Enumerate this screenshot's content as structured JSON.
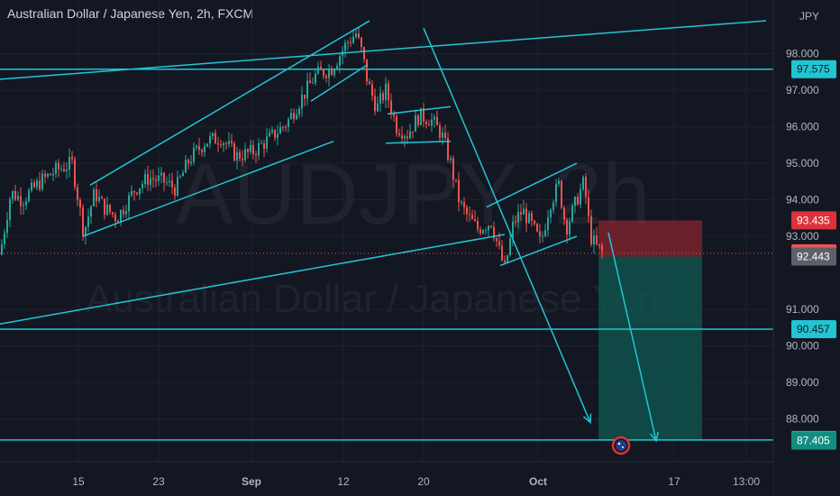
{
  "header": {
    "title": "Australian Dollar / Japanese Yen, 2h, FXCM"
  },
  "watermark": {
    "symbol": "AUDJPY, 2h",
    "name": "Australian Dollar / Japanese Yen"
  },
  "colors": {
    "background": "#131722",
    "up": "#26a69a",
    "down": "#ef5350",
    "drawing": "#22c5d4",
    "stop_zone": "#b22833",
    "target_zone": "#0f5a50",
    "grid": "#1e222d"
  },
  "chart_data": {
    "type": "candlestick",
    "symbol": "AUDJPY",
    "timeframe": "2h",
    "source": "FXCM",
    "currency_label": "JPY",
    "ylim": [
      86.6,
      100.2
    ],
    "y_ticks": [
      "98.000",
      "97.000",
      "96.000",
      "95.000",
      "94.000",
      "93.000",
      "91.000",
      "90.000",
      "89.000",
      "88.000"
    ],
    "x_ticks": [
      "15",
      "23",
      "Sep",
      "12",
      "20",
      "Oct",
      "17",
      "13:00"
    ],
    "price_labels": [
      {
        "value": "97.575",
        "style": "drawing"
      },
      {
        "value": "93.435",
        "style": "stop"
      },
      {
        "value": "92.534",
        "style": "last"
      },
      {
        "value": "92.443",
        "style": "entry"
      },
      {
        "value": "90.457",
        "style": "drawing"
      },
      {
        "value": "87.422",
        "style": "drawing"
      },
      {
        "value": "87.405",
        "style": "target"
      }
    ],
    "horizontal_levels": [
      97.575,
      90.457,
      87.422
    ],
    "last_price": 92.534,
    "position": {
      "side": "short",
      "entry": 92.443,
      "stop": 93.435,
      "target": 87.405
    },
    "swing_points": [
      [
        0,
        92.5
      ],
      [
        12,
        94.2
      ],
      [
        25,
        94.0
      ],
      [
        45,
        94.5
      ],
      [
        62,
        94.8
      ],
      [
        80,
        95.0
      ],
      [
        93,
        93.1
      ],
      [
        105,
        94.2
      ],
      [
        115,
        93.8
      ],
      [
        130,
        93.5
      ],
      [
        150,
        94.3
      ],
      [
        165,
        94.6
      ],
      [
        182,
        94.5
      ],
      [
        195,
        94.3
      ],
      [
        210,
        95.1
      ],
      [
        228,
        95.6
      ],
      [
        245,
        95.7
      ],
      [
        262,
        95.2
      ],
      [
        280,
        95.3
      ],
      [
        300,
        95.7
      ],
      [
        318,
        96.1
      ],
      [
        335,
        96.8
      ],
      [
        350,
        97.4
      ],
      [
        368,
        97.6
      ],
      [
        385,
        98.3
      ],
      [
        395,
        98.55
      ],
      [
        402,
        98.0
      ],
      [
        408,
        97.2
      ],
      [
        418,
        96.5
      ],
      [
        428,
        97.0
      ],
      [
        440,
        96.0
      ],
      [
        452,
        95.8
      ],
      [
        465,
        96.3
      ],
      [
        478,
        96.2
      ],
      [
        490,
        95.8
      ],
      [
        500,
        95.0
      ],
      [
        510,
        93.9
      ],
      [
        520,
        93.5
      ],
      [
        530,
        93.2
      ],
      [
        545,
        93.4
      ],
      [
        555,
        92.5
      ],
      [
        560,
        92.1
      ],
      [
        570,
        93.4
      ],
      [
        580,
        93.7
      ],
      [
        590,
        93.3
      ],
      [
        600,
        92.8
      ],
      [
        610,
        93.9
      ],
      [
        620,
        94.4
      ],
      [
        628,
        93.2
      ],
      [
        640,
        94.0
      ],
      [
        648,
        94.5
      ],
      [
        655,
        93.0
      ],
      [
        662,
        92.7
      ],
      [
        670,
        92.53
      ]
    ],
    "trend_lines": [
      [
        [
          0,
          97.3
        ],
        [
          850,
          98.9
        ]
      ],
      [
        [
          0,
          90.6
        ],
        [
          560,
          93.05
        ]
      ],
      [
        [
          92,
          93.0
        ],
        [
          370,
          95.6
        ]
      ],
      [
        [
          100,
          94.4
        ],
        [
          410,
          98.9
        ]
      ],
      [
        [
          345,
          96.7
        ],
        [
          408,
          97.7
        ]
      ],
      [
        [
          430,
          96.35
        ],
        [
          500,
          96.55
        ]
      ],
      [
        [
          428,
          95.55
        ],
        [
          500,
          95.6
        ]
      ],
      [
        [
          540,
          93.8
        ],
        [
          640,
          95.0
        ]
      ],
      [
        [
          555,
          92.2
        ],
        [
          640,
          93.0
        ]
      ]
    ],
    "projection_arrows": [
      [
        [
          470,
          98.7
        ],
        [
          655,
          87.9
        ]
      ],
      [
        [
          675,
          93.1
        ],
        [
          728,
          87.4
        ]
      ]
    ]
  }
}
